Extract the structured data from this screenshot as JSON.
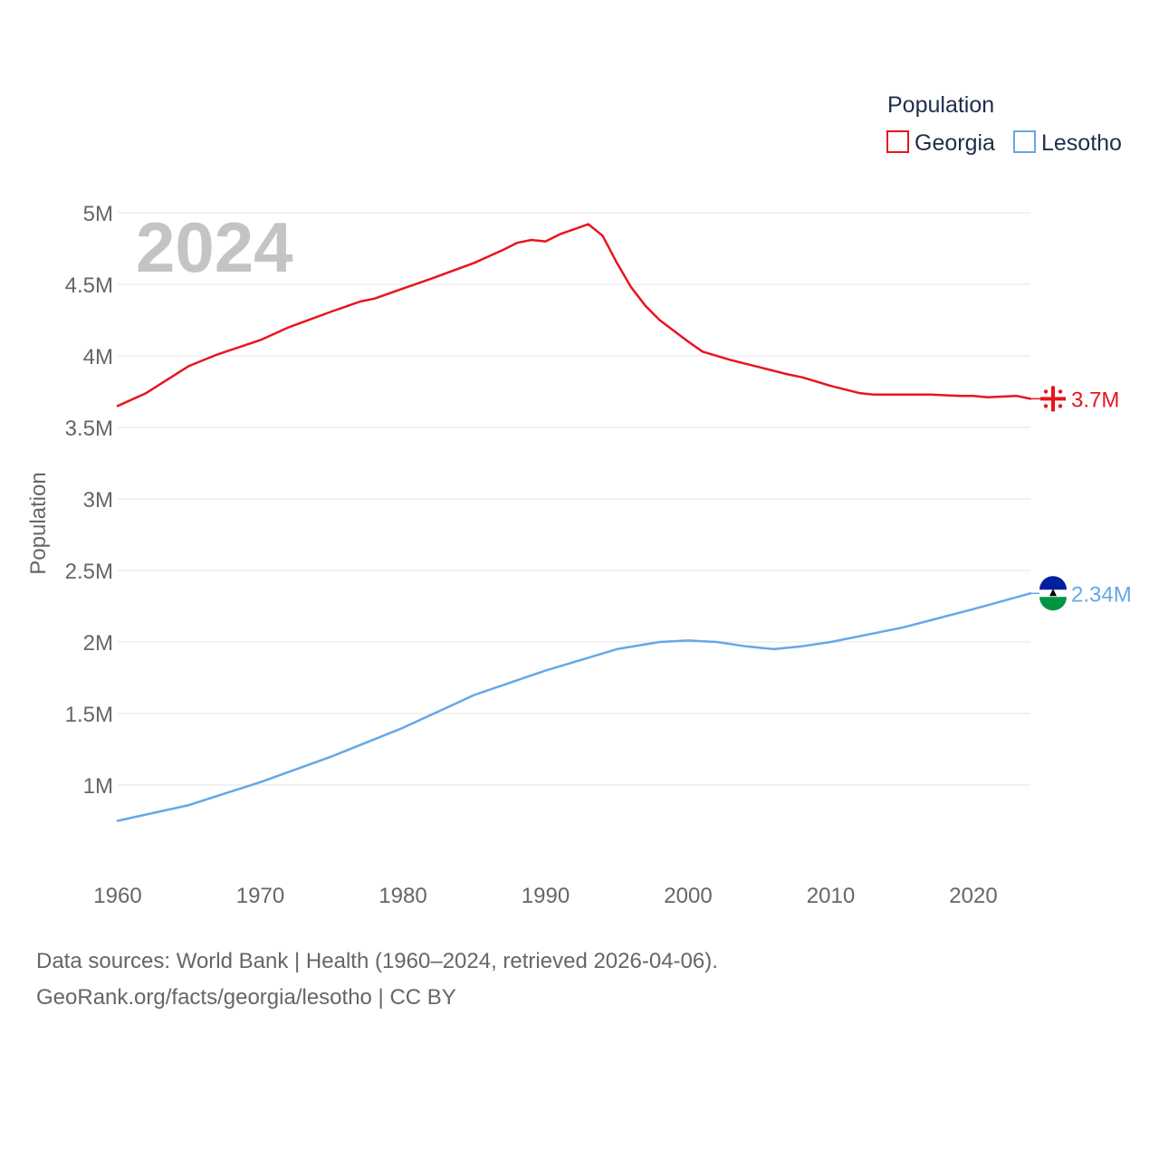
{
  "legend": {
    "title": "Population",
    "items": [
      {
        "label": "Georgia",
        "color": "#e8141d"
      },
      {
        "label": "Lesotho",
        "color": "#66a7e6"
      }
    ]
  },
  "year_label": "2024",
  "footer": {
    "line1": "Data sources: World Bank | Health (1960–2024, retrieved 2026-04-06).",
    "line2": "GeoRank.org/facts/georgia/lesotho | CC BY"
  },
  "chart_data": {
    "type": "line",
    "title": "",
    "xlabel": "",
    "ylabel": "Population",
    "xlim": [
      1960,
      2024
    ],
    "ylim": [
      500000,
      5000000
    ],
    "x_ticks": [
      1960,
      1970,
      1980,
      1990,
      2000,
      2010,
      2020
    ],
    "x_tick_labels": [
      "1960",
      "1970",
      "1980",
      "1990",
      "2000",
      "2010",
      "2020"
    ],
    "y_ticks": [
      1000000,
      1500000,
      2000000,
      2500000,
      3000000,
      3500000,
      4000000,
      4500000,
      5000000
    ],
    "y_tick_labels": [
      "1M",
      "1.5M",
      "2M",
      "2.5M",
      "3M",
      "3.5M",
      "4M",
      "4.5M",
      "5M"
    ],
    "grid": true,
    "legend_position": "top-right",
    "series": [
      {
        "name": "Georgia",
        "color": "#e8141d",
        "end_label": "3.7M",
        "flag_icon": "georgia-flag-icon",
        "points": [
          [
            1960,
            3650000
          ],
          [
            1962,
            3740000
          ],
          [
            1965,
            3930000
          ],
          [
            1967,
            4010000
          ],
          [
            1970,
            4110000
          ],
          [
            1972,
            4200000
          ],
          [
            1975,
            4310000
          ],
          [
            1977,
            4380000
          ],
          [
            1978,
            4400000
          ],
          [
            1980,
            4470000
          ],
          [
            1982,
            4540000
          ],
          [
            1985,
            4650000
          ],
          [
            1987,
            4740000
          ],
          [
            1988,
            4790000
          ],
          [
            1989,
            4810000
          ],
          [
            1990,
            4800000
          ],
          [
            1991,
            4850000
          ],
          [
            1993,
            4920000
          ],
          [
            1994,
            4840000
          ],
          [
            1995,
            4650000
          ],
          [
            1996,
            4480000
          ],
          [
            1997,
            4350000
          ],
          [
            1998,
            4250000
          ],
          [
            2000,
            4100000
          ],
          [
            2001,
            4030000
          ],
          [
            2003,
            3970000
          ],
          [
            2005,
            3920000
          ],
          [
            2007,
            3870000
          ],
          [
            2008,
            3850000
          ],
          [
            2010,
            3790000
          ],
          [
            2012,
            3740000
          ],
          [
            2013,
            3730000
          ],
          [
            2015,
            3730000
          ],
          [
            2017,
            3730000
          ],
          [
            2019,
            3720000
          ],
          [
            2020,
            3720000
          ],
          [
            2021,
            3710000
          ],
          [
            2023,
            3720000
          ],
          [
            2024,
            3700000
          ]
        ]
      },
      {
        "name": "Lesotho",
        "color": "#66a7e6",
        "end_label": "2.34M",
        "flag_icon": "lesotho-flag-icon",
        "points": [
          [
            1960,
            750000
          ],
          [
            1965,
            860000
          ],
          [
            1970,
            1020000
          ],
          [
            1975,
            1200000
          ],
          [
            1980,
            1400000
          ],
          [
            1985,
            1630000
          ],
          [
            1990,
            1800000
          ],
          [
            1993,
            1890000
          ],
          [
            1995,
            1950000
          ],
          [
            1998,
            2000000
          ],
          [
            2000,
            2010000
          ],
          [
            2002,
            2000000
          ],
          [
            2004,
            1970000
          ],
          [
            2006,
            1950000
          ],
          [
            2008,
            1970000
          ],
          [
            2010,
            2000000
          ],
          [
            2012,
            2040000
          ],
          [
            2015,
            2100000
          ],
          [
            2020,
            2230000
          ],
          [
            2024,
            2340000
          ]
        ]
      }
    ]
  }
}
